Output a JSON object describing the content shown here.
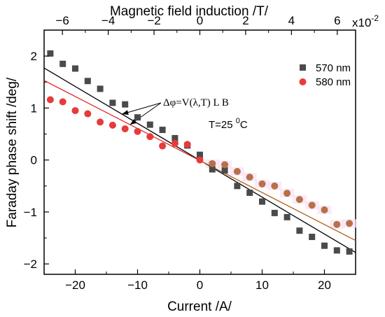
{
  "chart_data": {
    "type": "scatter",
    "xlabel": "Current /A/",
    "ylabel": "Faraday phase shift /deg/",
    "x2label": "Magnetic field induction /T/",
    "x2_multiplier": "x10",
    "x2_multiplier_exp": "-2",
    "xlim": [
      -25,
      25
    ],
    "ylim": [
      -2.2,
      2.5
    ],
    "x2lim": [
      -6.8,
      6.8
    ],
    "xticks": [
      -20,
      -10,
      0,
      10,
      20
    ],
    "xtick_labels": [
      "−20",
      "−10",
      "0",
      "10",
      "20"
    ],
    "yticks": [
      -2,
      -1,
      0,
      1,
      2
    ],
    "ytick_labels": [
      "−2",
      "−1",
      "0",
      "1",
      "2"
    ],
    "x2ticks": [
      -6,
      -4,
      -2,
      0,
      2,
      4,
      6
    ],
    "x2tick_labels": [
      "−6",
      "−4",
      "−2",
      "0",
      "2",
      "4",
      "6"
    ],
    "grid": false,
    "legend_position": "top-right",
    "series": [
      {
        "name": "570 nm",
        "marker": "square",
        "color": "#4a4a4a",
        "x": [
          -24,
          -22,
          -20,
          -18,
          -16,
          -14,
          -12,
          -10,
          -8,
          -6,
          -4,
          -2,
          0,
          2,
          4,
          6,
          8,
          10,
          12,
          14,
          16,
          18,
          20,
          22,
          24
        ],
        "y": [
          2.05,
          1.85,
          1.76,
          1.52,
          1.37,
          1.1,
          1.07,
          0.82,
          0.68,
          0.58,
          0.42,
          0.28,
          0.1,
          -0.18,
          -0.2,
          -0.5,
          -0.63,
          -0.8,
          -1.02,
          -1.1,
          -1.36,
          -1.48,
          -1.65,
          -1.74,
          -1.76
        ]
      },
      {
        "name": "580 nm",
        "marker": "circle",
        "color": "#e83a3a",
        "x": [
          -24,
          -22,
          -20,
          -18,
          -16,
          -14,
          -12,
          -10,
          -8,
          -6,
          -4,
          -2,
          0,
          2,
          4,
          6,
          8,
          10,
          12,
          14,
          16,
          18,
          20,
          22,
          24
        ],
        "y": [
          1.16,
          1.12,
          0.95,
          0.89,
          0.73,
          0.67,
          0.6,
          0.55,
          0.45,
          0.27,
          0.32,
          0.3,
          0.0,
          -0.07,
          -0.09,
          -0.22,
          -0.33,
          -0.46,
          -0.5,
          -0.64,
          -0.76,
          -0.87,
          -0.96,
          -1.24,
          -1.22
        ]
      }
    ],
    "fit_lines": [
      {
        "series": "570 nm",
        "color": "#000000",
        "x": [
          -25,
          25
        ],
        "y": [
          1.77,
          -1.78
        ]
      },
      {
        "series": "580 nm",
        "color_left": "#e02020",
        "color_right": "#b0601a",
        "x": [
          -25,
          25
        ],
        "y": [
          1.53,
          -1.55
        ]
      }
    ],
    "annotations": [
      {
        "text": "Δφ=V(λ,T) L B"
      },
      {
        "text": "T=25 ",
        "sup": "0",
        "suffix": "C"
      }
    ]
  }
}
